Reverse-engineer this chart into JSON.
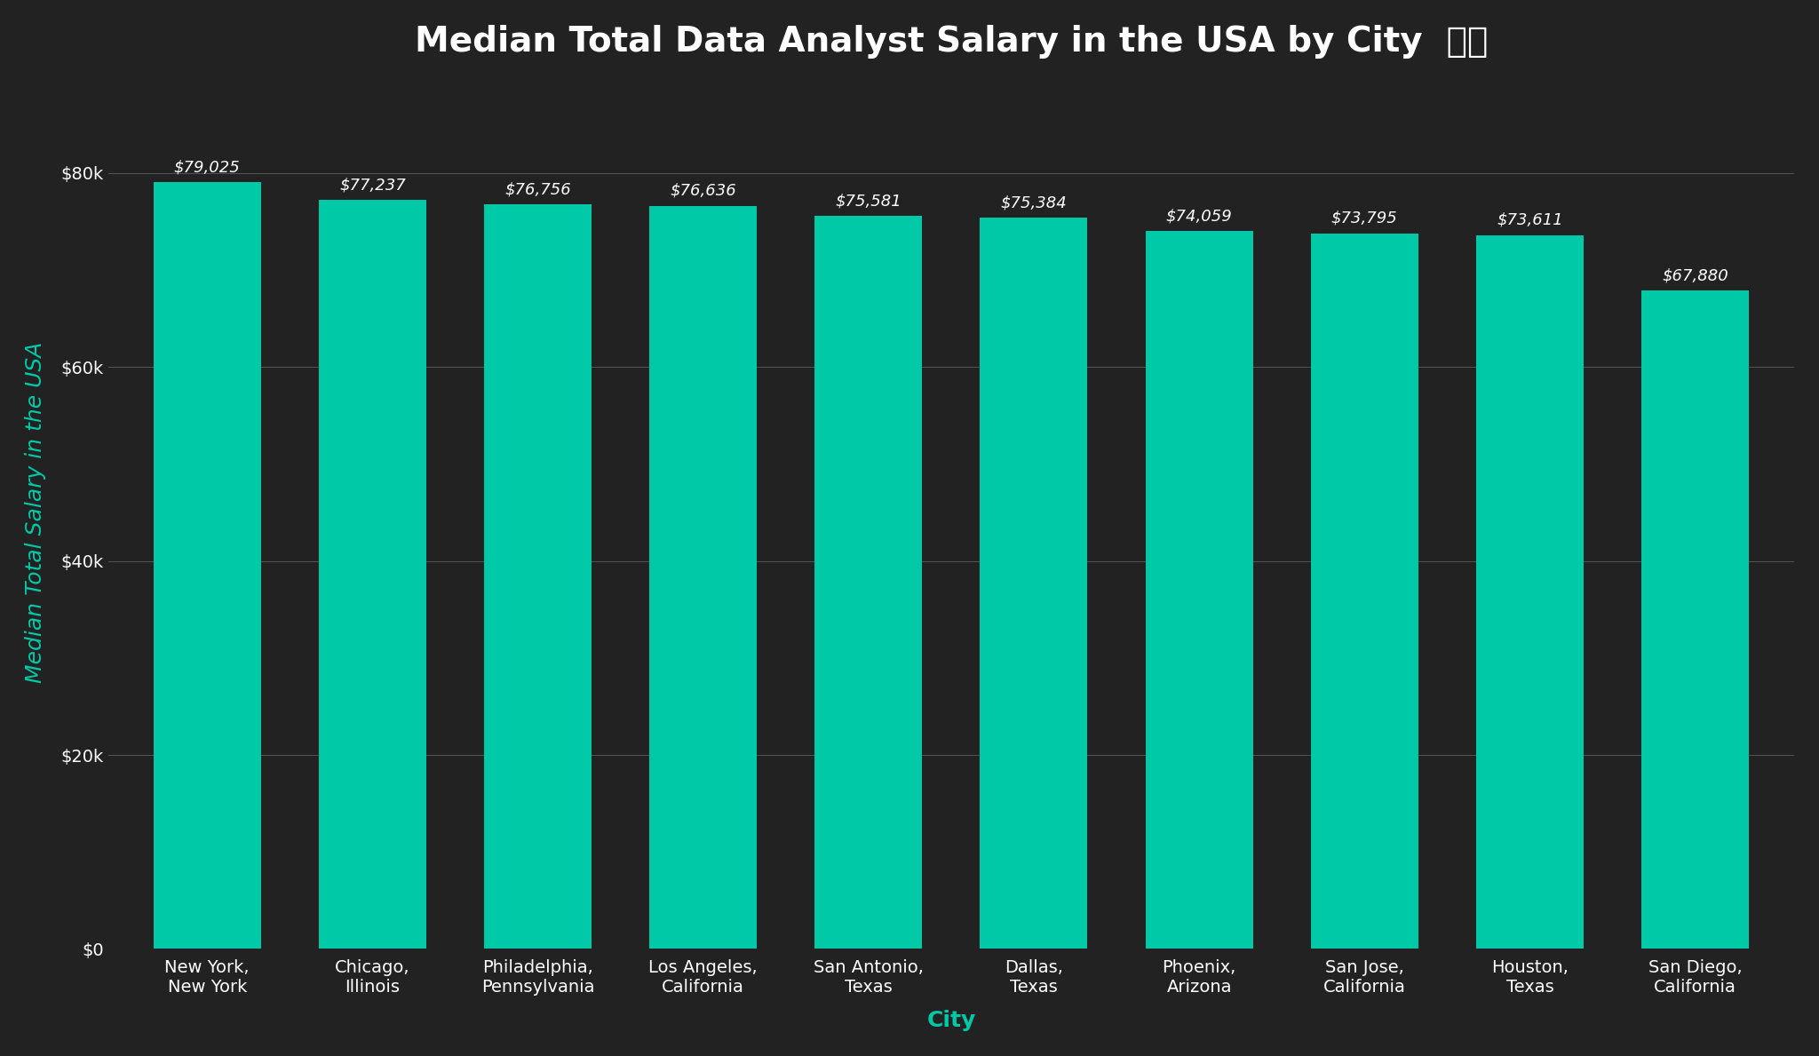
{
  "title": "Median Total Data Analyst Salary in the USA by City",
  "title_emoji": "🇺🇸",
  "xlabel": "City",
  "ylabel": "Median Total Salary in the USA",
  "categories": [
    "New York,\nNew York",
    "Chicago,\nIllinois",
    "Philadelphia,\nPennsylvania",
    "Los Angeles,\nCalifornia",
    "San Antonio,\nTexas",
    "Dallas,\nTexas",
    "Phoenix,\nArizona",
    "San Jose,\nCalifornia",
    "Houston,\nTexas",
    "San Diego,\nCalifornia"
  ],
  "values": [
    79025,
    77237,
    76756,
    76636,
    75581,
    75384,
    74059,
    73795,
    73611,
    67880
  ],
  "bar_color": "#00C9A7",
  "background_color": "#222222",
  "text_color": "#ffffff",
  "grid_color": "#555555",
  "xlabel_color": "#00C9A7",
  "ylabel_color": "#00C9A7",
  "annotation_color": "#ffffff",
  "ylim": [
    0,
    90000
  ],
  "yticks": [
    0,
    20000,
    40000,
    60000,
    80000
  ],
  "ytick_labels": [
    "$0",
    "$20k",
    "$40k",
    "$60k",
    "$80k"
  ],
  "title_fontsize": 28,
  "axis_label_fontsize": 18,
  "tick_fontsize": 14,
  "annotation_fontsize": 13,
  "bar_width": 0.65
}
